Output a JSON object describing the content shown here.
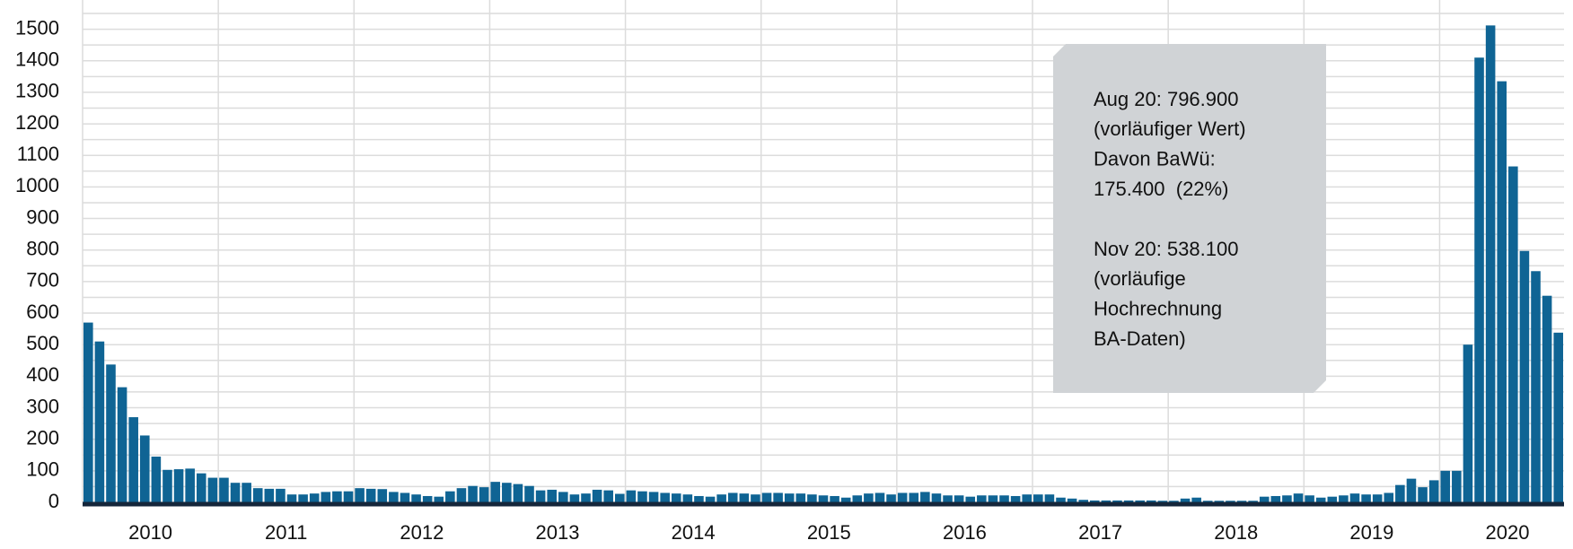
{
  "chart_data": {
    "type": "bar",
    "year_labels": [
      "2010",
      "2011",
      "2012",
      "2013",
      "2014",
      "2015",
      "2016",
      "2017",
      "2018",
      "2019",
      "2020"
    ],
    "categories": [
      null,
      null,
      null,
      null,
      null,
      null,
      null,
      null,
      null,
      null,
      null,
      null,
      null,
      null,
      null,
      null,
      null,
      null,
      null,
      null,
      null,
      null,
      null,
      null,
      null,
      null,
      null,
      null,
      null,
      null,
      null,
      null,
      null,
      null,
      null,
      null,
      null,
      null,
      null,
      null,
      null,
      null,
      null,
      null,
      null,
      null,
      null,
      null,
      null,
      null,
      null,
      null,
      null,
      null,
      null,
      null,
      null,
      null,
      null,
      null,
      null,
      null,
      null,
      null,
      null,
      null,
      null,
      null,
      null,
      null,
      null,
      null,
      null,
      null,
      null,
      null,
      null,
      null,
      null,
      null,
      null,
      null,
      null,
      null,
      null,
      null,
      null,
      null,
      null,
      null,
      null,
      null,
      null,
      null,
      null,
      null,
      null,
      null,
      null,
      null,
      null,
      null,
      null,
      null,
      null,
      null,
      null,
      null,
      null,
      null,
      null,
      null,
      null,
      null,
      null,
      null,
      null,
      null,
      null,
      null,
      null,
      null,
      null,
      null,
      null,
      null,
      null,
      null,
      null,
      null,
      null
    ],
    "values": [
      570,
      510,
      437,
      365,
      270,
      212,
      145,
      103,
      105,
      107,
      92,
      78,
      78,
      62,
      62,
      45,
      43,
      43,
      25,
      25,
      28,
      33,
      35,
      35,
      45,
      43,
      42,
      33,
      30,
      25,
      20,
      18,
      35,
      45,
      52,
      48,
      65,
      62,
      58,
      52,
      38,
      40,
      33,
      25,
      28,
      40,
      38,
      27,
      38,
      35,
      33,
      30,
      28,
      25,
      20,
      18,
      25,
      30,
      28,
      25,
      30,
      30,
      28,
      28,
      25,
      22,
      20,
      15,
      22,
      28,
      30,
      25,
      30,
      30,
      33,
      28,
      22,
      22,
      18,
      22,
      22,
      22,
      20,
      25,
      25,
      25,
      15,
      12,
      8,
      6,
      6,
      6,
      6,
      6,
      6,
      5,
      5,
      12,
      15,
      5,
      5,
      5,
      5,
      5,
      18,
      20,
      22,
      28,
      22,
      15,
      18,
      22,
      28,
      25,
      25,
      30,
      55,
      75,
      48,
      70,
      100,
      100,
      500,
      1410,
      1512,
      1335,
      1065,
      797,
      733,
      655,
      538
    ],
    "color": "#0f6494",
    "ylim": [
      0,
      1550
    ],
    "yticks": [
      0,
      100,
      200,
      300,
      400,
      500,
      600,
      700,
      800,
      900,
      1000,
      1100,
      1200,
      1300,
      1400,
      1500
    ],
    "minor_yticks": [
      50,
      150,
      250,
      350,
      450,
      550,
      650,
      750,
      850,
      950,
      1050,
      1150,
      1250,
      1350,
      1450,
      1550
    ],
    "grid": true,
    "annotation": [
      [
        "Aug 20: 796.900",
        "(vorläufiger Wert)",
        "Davon BaWü:",
        "175.400  (22%)"
      ],
      [
        "Nov 20: 538.100",
        "(vorläufige",
        "Hochrechnung",
        "BA-Daten)"
      ]
    ]
  }
}
